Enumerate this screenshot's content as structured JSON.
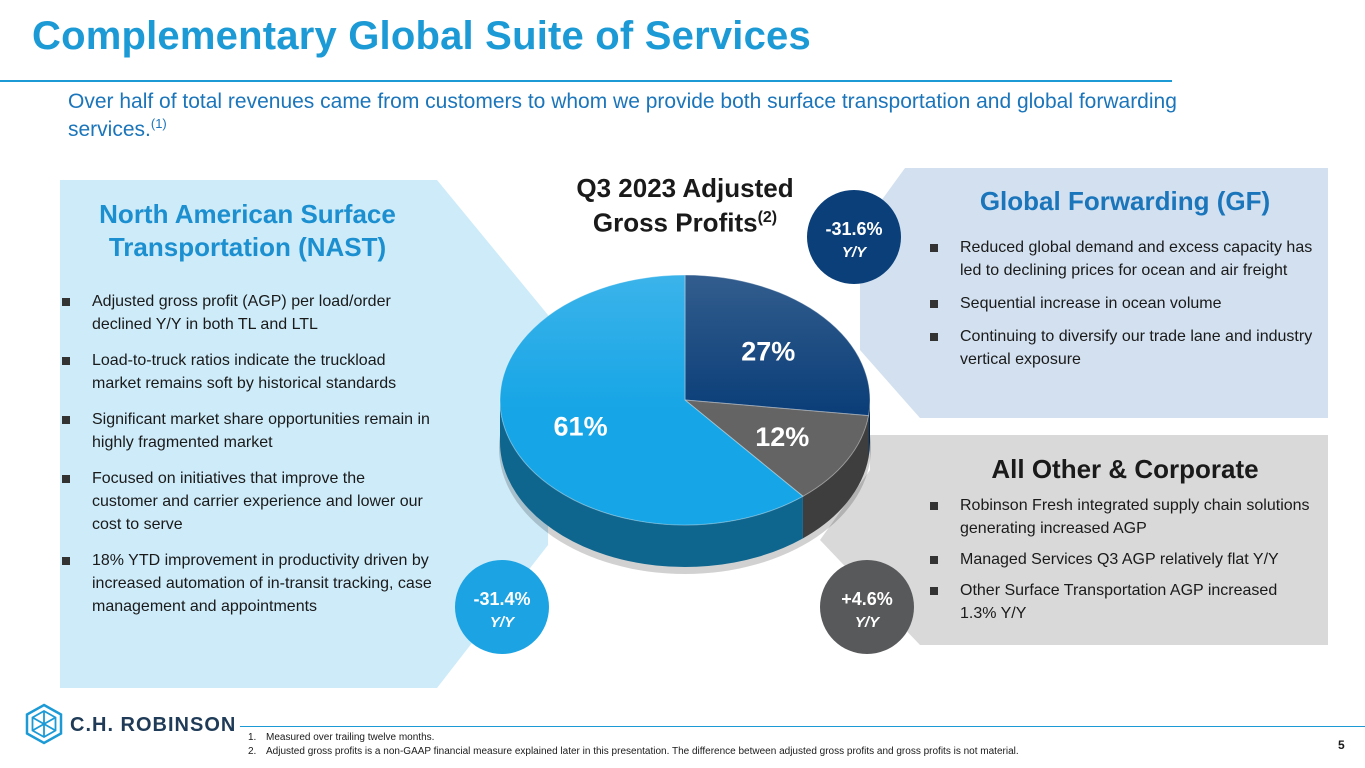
{
  "header": {
    "title": "Complementary Global Suite of Services",
    "subtitle": "Over half of total revenues came from customers to whom we provide both surface transportation and global forwarding services.",
    "subtitle_ref": "(1)"
  },
  "colors": {
    "accent": "#1b9ad6",
    "nast_panel": "#cdebf9",
    "gf_panel": "#d2e0ef",
    "other_panel": "#d9d9d9",
    "nast_slice": "#16a5e6",
    "gf_slice": "#0b3e78",
    "other_slice": "#646464"
  },
  "chart": {
    "title_line1": "Q3 2023 Adjusted",
    "title_line2": "Gross Profits",
    "title_ref": "(2)"
  },
  "chart_data": {
    "type": "pie",
    "title": "Q3 2023 Adjusted Gross Profits",
    "slices": [
      {
        "label": "27%",
        "value": 27,
        "color": "#0b3e78"
      },
      {
        "label": "12%",
        "value": 12,
        "color": "#646464"
      },
      {
        "label": "61%",
        "value": 61,
        "color": "#16a5e6"
      }
    ]
  },
  "nast": {
    "title_line1": "North American Surface",
    "title_line2": "Transportation (NAST)",
    "bullets": [
      "Adjusted gross profit (AGP) per load/order declined Y/Y in both TL and LTL",
      "Load-to-truck ratios indicate the truckload market remains soft by historical standards",
      "Significant market share opportunities remain in highly fragmented market",
      "Focused on initiatives that improve the customer and carrier experience and lower our cost to serve",
      "18% YTD improvement in productivity driven by increased automation of in-transit tracking, case management and appointments"
    ],
    "change": "-31.4%",
    "change_unit": "Y/Y"
  },
  "gf": {
    "title": "Global Forwarding (GF)",
    "bullets": [
      "Reduced global demand and excess capacity has led to declining prices for ocean and air freight",
      "Sequential increase in ocean volume",
      "Continuing to diversify our trade lane and industry vertical exposure"
    ],
    "change": "-31.6%",
    "change_unit": "Y/Y"
  },
  "other": {
    "title": "All Other & Corporate",
    "bullets": [
      "Robinson Fresh integrated supply chain solutions generating increased AGP",
      "Managed Services Q3 AGP relatively flat Y/Y",
      "Other Surface Transportation AGP increased 1.3% Y/Y"
    ],
    "change": "+4.6%",
    "change_unit": "Y/Y"
  },
  "footer": {
    "logo_text": "C.H. ROBINSON",
    "logo_icon": "ch-robinson-logo-icon",
    "footnotes": [
      {
        "num": "1.",
        "text": "Measured over trailing twelve months."
      },
      {
        "num": "2.",
        "text": "Adjusted gross profits is a non-GAAP financial measure explained later in this presentation. The difference between adjusted gross profits and gross profits is not material."
      }
    ],
    "page_number": "5"
  }
}
